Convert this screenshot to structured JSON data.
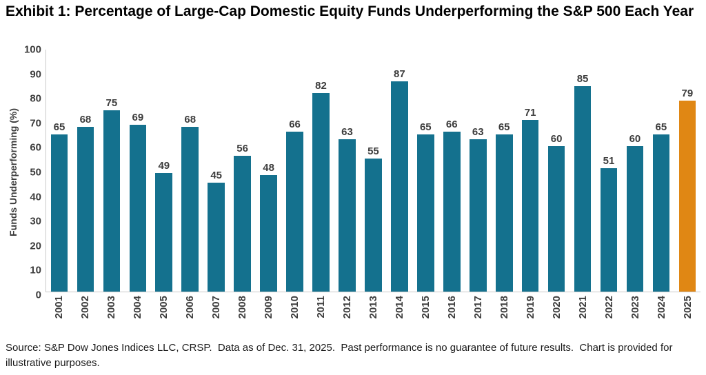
{
  "page": {
    "title": "Exhibit 1: Percentage of Large-Cap Domestic Equity Funds Underperforming the S&P 500 Each Year",
    "source_note": "Source: S&P Dow Jones Indices LLC, CRSP.  Data as of Dec. 31, 2025.  Past performance is no guarantee of future results.  Chart is provided for illustrative purposes."
  },
  "chart_data": {
    "type": "bar",
    "title": "Exhibit 1: Percentage of Large-Cap Domestic Equity Funds Underperforming the S&P 500 Each Year",
    "xlabel": "",
    "ylabel": "Funds Underperforming (%)",
    "ylim": [
      0,
      100
    ],
    "y_ticks": [
      0,
      10,
      20,
      30,
      40,
      50,
      60,
      70,
      80,
      90,
      100
    ],
    "grid": false,
    "legend": false,
    "data_labels": true,
    "categories": [
      "2001",
      "2002",
      "2003",
      "2004",
      "2005",
      "2006",
      "2007",
      "2008",
      "2009",
      "2010",
      "2011",
      "2012",
      "2013",
      "2014",
      "2015",
      "2016",
      "2017",
      "2018",
      "2019",
      "2020",
      "2021",
      "2022",
      "2023",
      "2024",
      "2025"
    ],
    "values": [
      65,
      68,
      75,
      69,
      49,
      68,
      45,
      56,
      48,
      66,
      82,
      63,
      55,
      87,
      65,
      66,
      63,
      65,
      71,
      60,
      85,
      51,
      60,
      65,
      79
    ],
    "bar_color": "#14718E",
    "highlight_color": "#E08714",
    "highlighted_category": "2025",
    "axis_line_color": "#c9c9c9"
  }
}
